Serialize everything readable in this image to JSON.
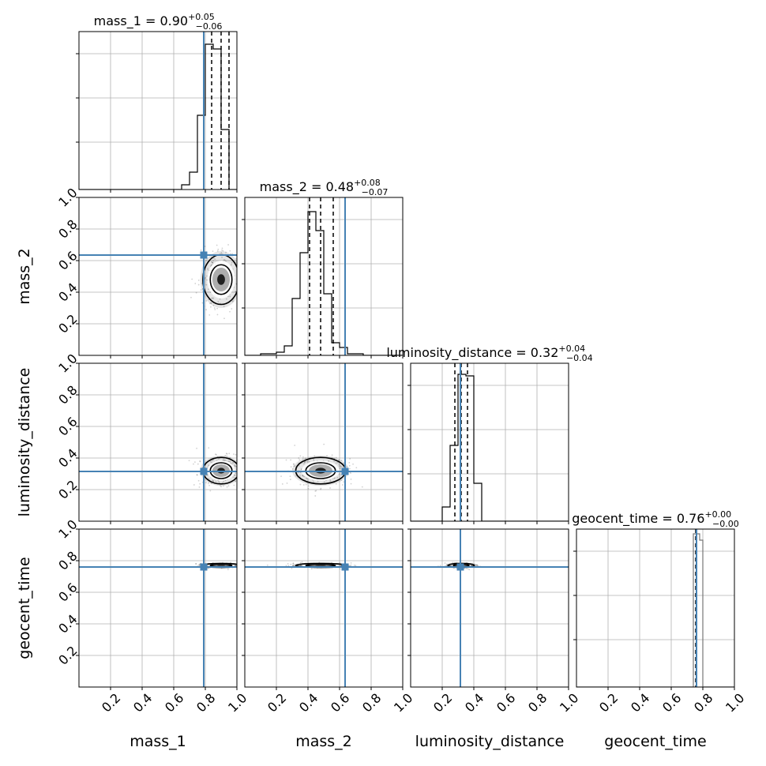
{
  "chart_data": {
    "type": "corner",
    "parameters": [
      "mass_1",
      "mass_2",
      "luminosity_distance",
      "geocent_time"
    ],
    "axis_labels": [
      "mass_1",
      "mass_2",
      "luminosity_distance",
      "geocent_time"
    ],
    "ranges": [
      [
        0,
        1
      ],
      [
        0,
        1
      ],
      [
        0,
        1
      ],
      [
        0,
        1
      ]
    ],
    "ticks": [
      "0.2",
      "0.4",
      "0.6",
      "0.8",
      "1.0"
    ],
    "grid": true,
    "truth_color": "#4682b4",
    "truths": [
      0.79,
      0.635,
      0.315,
      0.76
    ],
    "titles": [
      {
        "name": "mass_1",
        "value": "0.90",
        "plus": "+0.05",
        "minus": "−0.06"
      },
      {
        "name": "mass_2",
        "value": "0.48",
        "plus": "+0.08",
        "minus": "−0.07"
      },
      {
        "name": "luminosity_distance",
        "value": "0.32",
        "plus": "+0.04",
        "minus": "−0.04"
      },
      {
        "name": "geocent_time",
        "value": "0.76",
        "plus": "+0.00",
        "minus": "−0.00"
      }
    ],
    "quantiles": [
      [
        0.84,
        0.9,
        0.95
      ],
      [
        0.41,
        0.48,
        0.56
      ],
      [
        0.28,
        0.32,
        0.36
      ],
      [
        0.755,
        0.76,
        0.76
      ]
    ],
    "histograms": [
      {
        "edges": [
          0.65,
          0.7,
          0.75,
          0.8,
          0.85,
          0.9,
          0.95,
          1.0
        ],
        "counts": [
          0.03,
          0.11,
          0.47,
          0.92,
          0.89,
          0.38,
          0.0
        ]
      },
      {
        "edges": [
          0.1,
          0.15,
          0.2,
          0.25,
          0.3,
          0.35,
          0.4,
          0.45,
          0.5,
          0.55,
          0.6,
          0.65,
          0.7,
          0.75,
          0.8,
          0.85,
          0.9,
          0.95
        ],
        "counts": [
          0.01,
          0.01,
          0.02,
          0.06,
          0.36,
          0.65,
          0.91,
          0.79,
          0.39,
          0.08,
          0.05,
          0.01,
          0.01,
          0.0,
          0.0,
          0.0,
          0.0
        ]
      },
      {
        "edges": [
          0.2,
          0.25,
          0.3,
          0.35,
          0.4,
          0.45
        ],
        "counts": [
          0.09,
          0.48,
          0.93,
          0.92,
          0.24
        ]
      },
      {
        "edges": [
          0.74,
          0.76,
          0.78,
          0.8
        ],
        "counts": [
          0.97,
          0.97,
          0.93
        ]
      }
    ],
    "contours": [
      {
        "row": 1,
        "col": 0,
        "center": [
          0.9,
          0.48
        ],
        "sigma": [
          0.055,
          0.075
        ]
      },
      {
        "row": 2,
        "col": 0,
        "center": [
          0.9,
          0.32
        ],
        "sigma": [
          0.055,
          0.04
        ]
      },
      {
        "row": 2,
        "col": 1,
        "center": [
          0.48,
          0.32
        ],
        "sigma": [
          0.075,
          0.04
        ]
      },
      {
        "row": 3,
        "col": 0,
        "center": [
          0.9,
          0.77
        ],
        "sigma": [
          0.055,
          0.006
        ]
      },
      {
        "row": 3,
        "col": 1,
        "center": [
          0.48,
          0.77
        ],
        "sigma": [
          0.075,
          0.006
        ]
      },
      {
        "row": 3,
        "col": 2,
        "center": [
          0.32,
          0.77
        ],
        "sigma": [
          0.04,
          0.006
        ]
      }
    ]
  }
}
